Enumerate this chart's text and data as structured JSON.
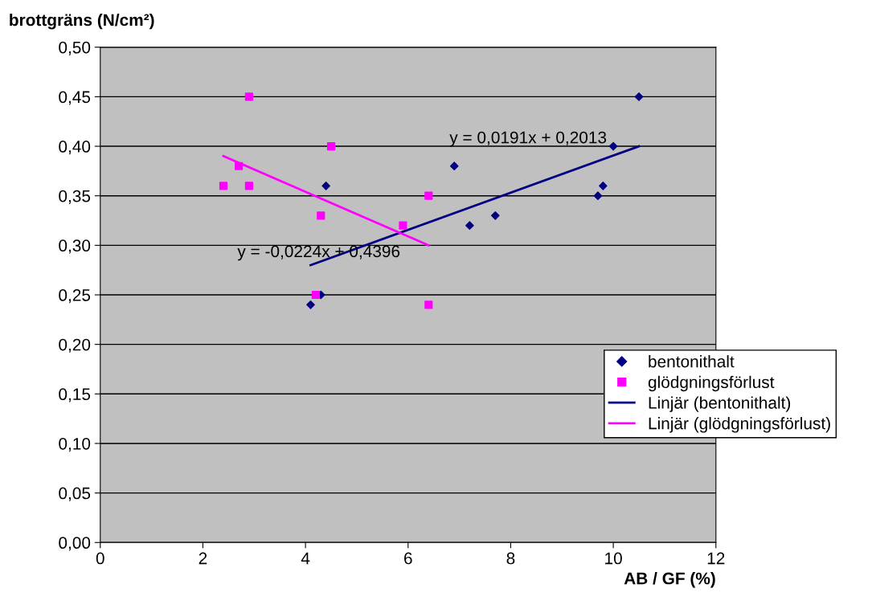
{
  "chart_data": {
    "type": "scatter",
    "xlabel": "AB / GF (%)",
    "ylabel": "brottgräns (N/cm²)",
    "xlim": [
      0,
      12
    ],
    "xticks": [
      0,
      2,
      4,
      6,
      8,
      10,
      12
    ],
    "ylim": [
      0,
      0.5
    ],
    "yticks": [
      {
        "value": 0,
        "label": "0,00"
      },
      {
        "value": 0.05,
        "label": "0,05"
      },
      {
        "value": 0.1,
        "label": "0,10"
      },
      {
        "value": 0.15,
        "label": "0,15"
      },
      {
        "value": 0.2,
        "label": "0,20"
      },
      {
        "value": 0.25,
        "label": "0,25"
      },
      {
        "value": 0.3,
        "label": "0,30"
      },
      {
        "value": 0.35,
        "label": "0,35"
      },
      {
        "value": 0.4,
        "label": "0,40"
      },
      {
        "value": 0.45,
        "label": "0,45"
      },
      {
        "value": 0.5,
        "label": "0,50"
      }
    ],
    "grid": "y",
    "legend": "right",
    "series": [
      {
        "name": "bentonithalt",
        "marker": "diamond",
        "color": "#000080",
        "x": [
          4.1,
          4.3,
          4.4,
          6.9,
          7.2,
          7.7,
          9.7,
          9.8,
          10.0,
          10.5
        ],
        "values": [
          0.24,
          0.25,
          0.36,
          0.38,
          0.32,
          0.33,
          0.35,
          0.36,
          0.4,
          0.45
        ]
      },
      {
        "name": "glödgningsförlust",
        "marker": "square",
        "color": "#ff00ff",
        "x": [
          2.4,
          2.7,
          2.9,
          2.9,
          4.3,
          4.2,
          4.5,
          5.9,
          6.4,
          6.4
        ],
        "values": [
          0.36,
          0.38,
          0.45,
          0.36,
          0.33,
          0.25,
          0.4,
          0.32,
          0.35,
          0.24
        ]
      },
      {
        "name": "Linjär (bentonithalt)",
        "type": "line",
        "marker": "none",
        "color": "#000080",
        "x": [
          4.1,
          10.5
        ],
        "values": [
          0.28,
          0.4
        ]
      },
      {
        "name": "Linjär (glödgningsförlust)",
        "type": "line",
        "marker": "none",
        "color": "#ff00ff",
        "x": [
          2.4,
          6.4
        ],
        "values": [
          0.39,
          0.3
        ]
      }
    ],
    "annotations": [
      "y = 0,0191x + 0,2013",
      "y = -0,0224x + 0,4396"
    ]
  }
}
